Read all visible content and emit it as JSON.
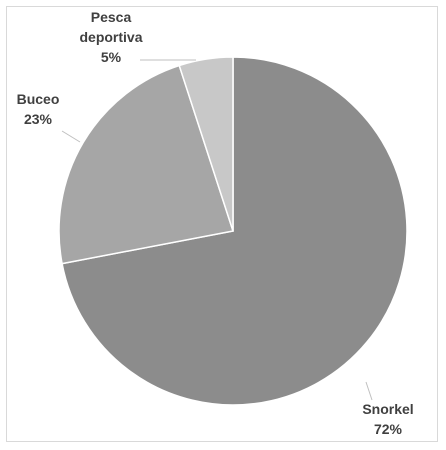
{
  "chart_data": {
    "type": "pie",
    "title": "",
    "categories": [
      "Snorkel",
      "Buceo",
      "Pesca deportiva"
    ],
    "values": [
      72,
      23,
      5
    ],
    "value_labels": [
      "72%",
      "23%",
      "5%"
    ],
    "label_lines": [
      [
        "Snorkel"
      ],
      [
        "Buceo"
      ],
      [
        "Pesca",
        "deportiva"
      ]
    ],
    "colors": [
      "#8c8c8c",
      "#a6a6a6",
      "#c8c8c8"
    ],
    "start": "12 o'clock",
    "direction": "clockwise",
    "legend": "none"
  }
}
